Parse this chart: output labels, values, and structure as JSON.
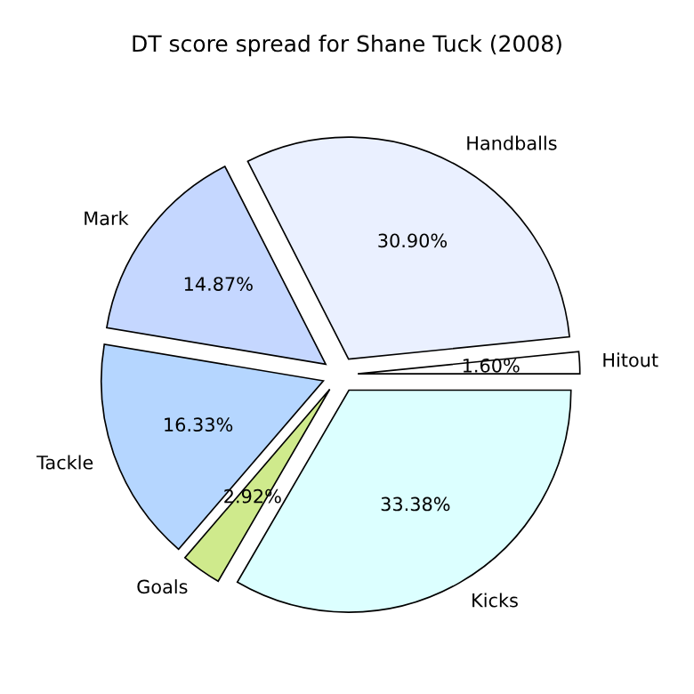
{
  "chart_data": {
    "type": "pie",
    "title": "DT score spread for Shane Tuck (2008)",
    "categories": [
      "Hitout",
      "Handballs",
      "Mark",
      "Tackle",
      "Goals",
      "Kicks"
    ],
    "values": [
      1.6,
      30.9,
      14.87,
      16.33,
      2.92,
      33.38
    ],
    "colors": [
      "#ffffff",
      "#eaf0ff",
      "#c5d7ff",
      "#b5d6ff",
      "#cfea8c",
      "#dcffff"
    ],
    "value_labels": [
      "1.60%",
      "30.90%",
      "14.87%",
      "16.33%",
      "2.92%",
      "33.38%"
    ]
  }
}
